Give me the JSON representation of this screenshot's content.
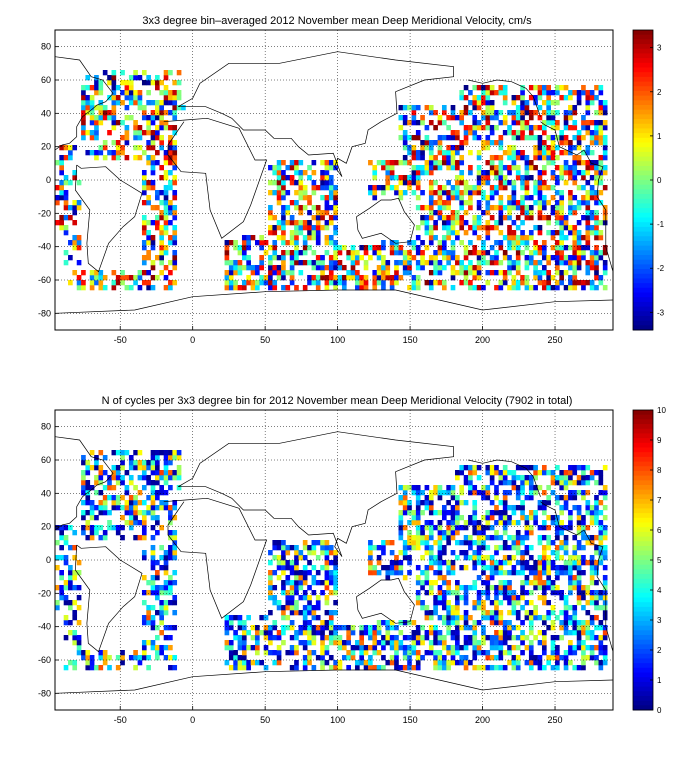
{
  "chart_data": [
    {
      "type": "heatmap",
      "title": "3x3 degree bin–averaged 2012 November mean Deep Meridional Velocity, cm/s",
      "xlim": [
        -95,
        290
      ],
      "ylim": [
        -90,
        90
      ],
      "xticks": [
        "-50",
        "0",
        "50",
        "100",
        "150",
        "200",
        "250"
      ],
      "yticks": [
        "-80",
        "-60",
        "-40",
        "-20",
        "0",
        "20",
        "40",
        "60",
        "80"
      ],
      "grid": true,
      "colorbar": {
        "min": -3.4,
        "max": 3.4,
        "ticks": [
          "-3",
          "-2",
          "-1",
          "0",
          "1",
          "2",
          "3"
        ],
        "colormap": "jet"
      },
      "bin_size_deg": 3
    },
    {
      "type": "heatmap",
      "title": "N of cycles per 3x3 degree bin for 2012 November mean Deep Meridional Velocity (7902 in total)",
      "xlim": [
        -95,
        290
      ],
      "ylim": [
        -90,
        90
      ],
      "xticks": [
        "-50",
        "0",
        "50",
        "100",
        "150",
        "200",
        "250"
      ],
      "yticks": [
        "-80",
        "-60",
        "-40",
        "-20",
        "0",
        "20",
        "40",
        "60",
        "80"
      ],
      "grid": true,
      "colorbar": {
        "min": 0,
        "max": 10,
        "ticks": [
          "0",
          "1",
          "2",
          "3",
          "4",
          "5",
          "6",
          "7",
          "8",
          "9",
          "10"
        ],
        "colormap": "jet"
      },
      "bin_size_deg": 3
    }
  ]
}
